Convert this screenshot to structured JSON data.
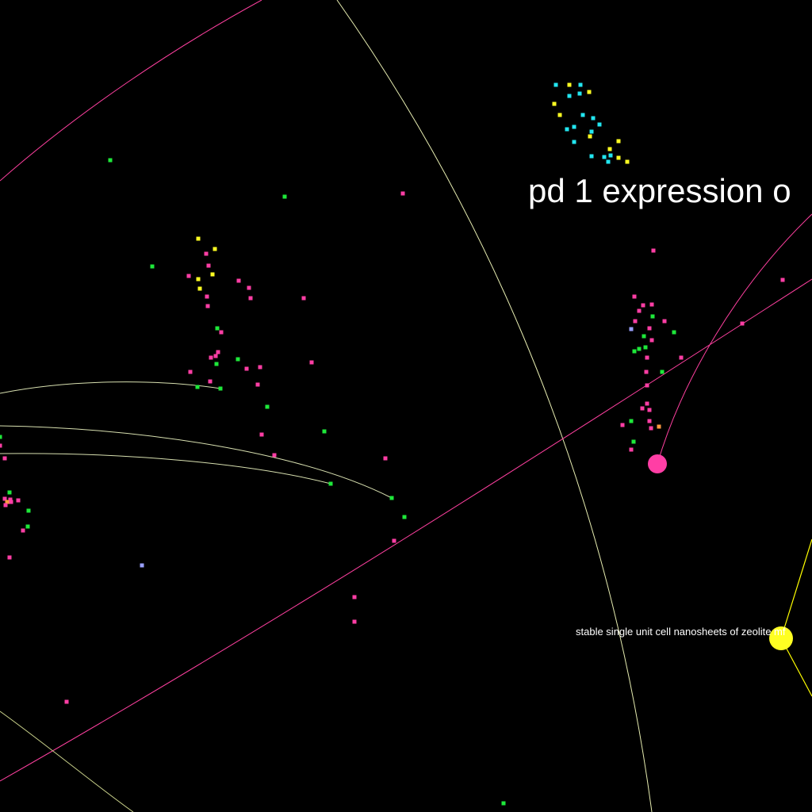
{
  "labels": {
    "main_cluster": "pd 1 expression o",
    "node_caption": "stable single unit cell nanosheets of zeolite mf"
  },
  "colors": {
    "background": "#000000",
    "pink": "#ff3ea5",
    "green": "#1ee83a",
    "yellow": "#ffff22",
    "cyan": "#22e6f0",
    "lavender": "#9aa0ff",
    "orange": "#ff9a40",
    "edge_light": "#e8f0b0",
    "edge_pink": "#ff40a0",
    "edge_yellow": "#ffff00"
  }
}
